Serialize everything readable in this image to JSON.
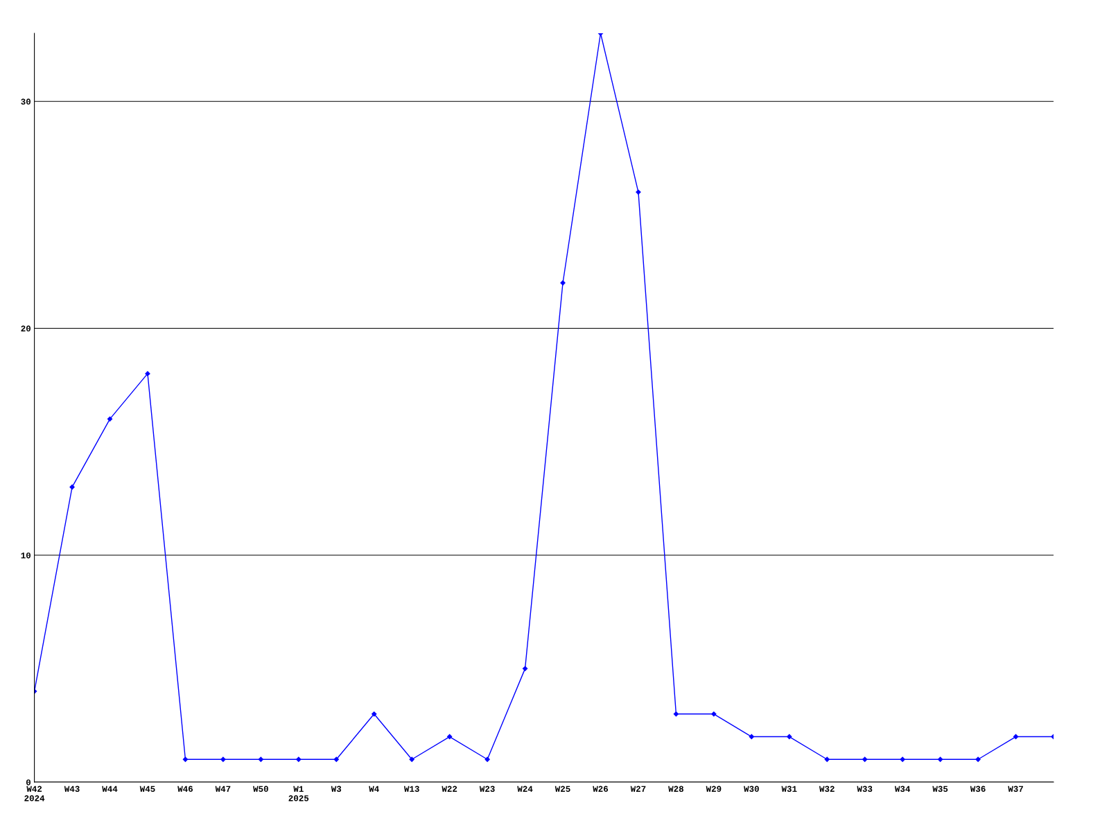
{
  "chart_data": {
    "type": "line",
    "categories": [
      "W42\n2024",
      "W43",
      "W44",
      "W45",
      "W46",
      "W47",
      "W50",
      "W1\n2025",
      "W3",
      "W4",
      "W13",
      "W22",
      "W23",
      "W24",
      "W25",
      "W26",
      "W27",
      "W28",
      "W29",
      "W30",
      "W31",
      "W32",
      "W33",
      "W34",
      "W35",
      "W36",
      "W37",
      null
    ],
    "series": [
      {
        "color": "#0000ff",
        "values": [
          4,
          13,
          16,
          18,
          1,
          1,
          1,
          1,
          1,
          3,
          1,
          2,
          1,
          5,
          22,
          33,
          26,
          3,
          3,
          2,
          2,
          1,
          1,
          1,
          1,
          1,
          2,
          2
        ]
      }
    ],
    "ylim": [
      0,
      33
    ],
    "yticks": [
      0,
      10,
      20,
      30
    ],
    "grid": "y",
    "marker": "diamond",
    "line_style": "solid",
    "legend": false
  }
}
